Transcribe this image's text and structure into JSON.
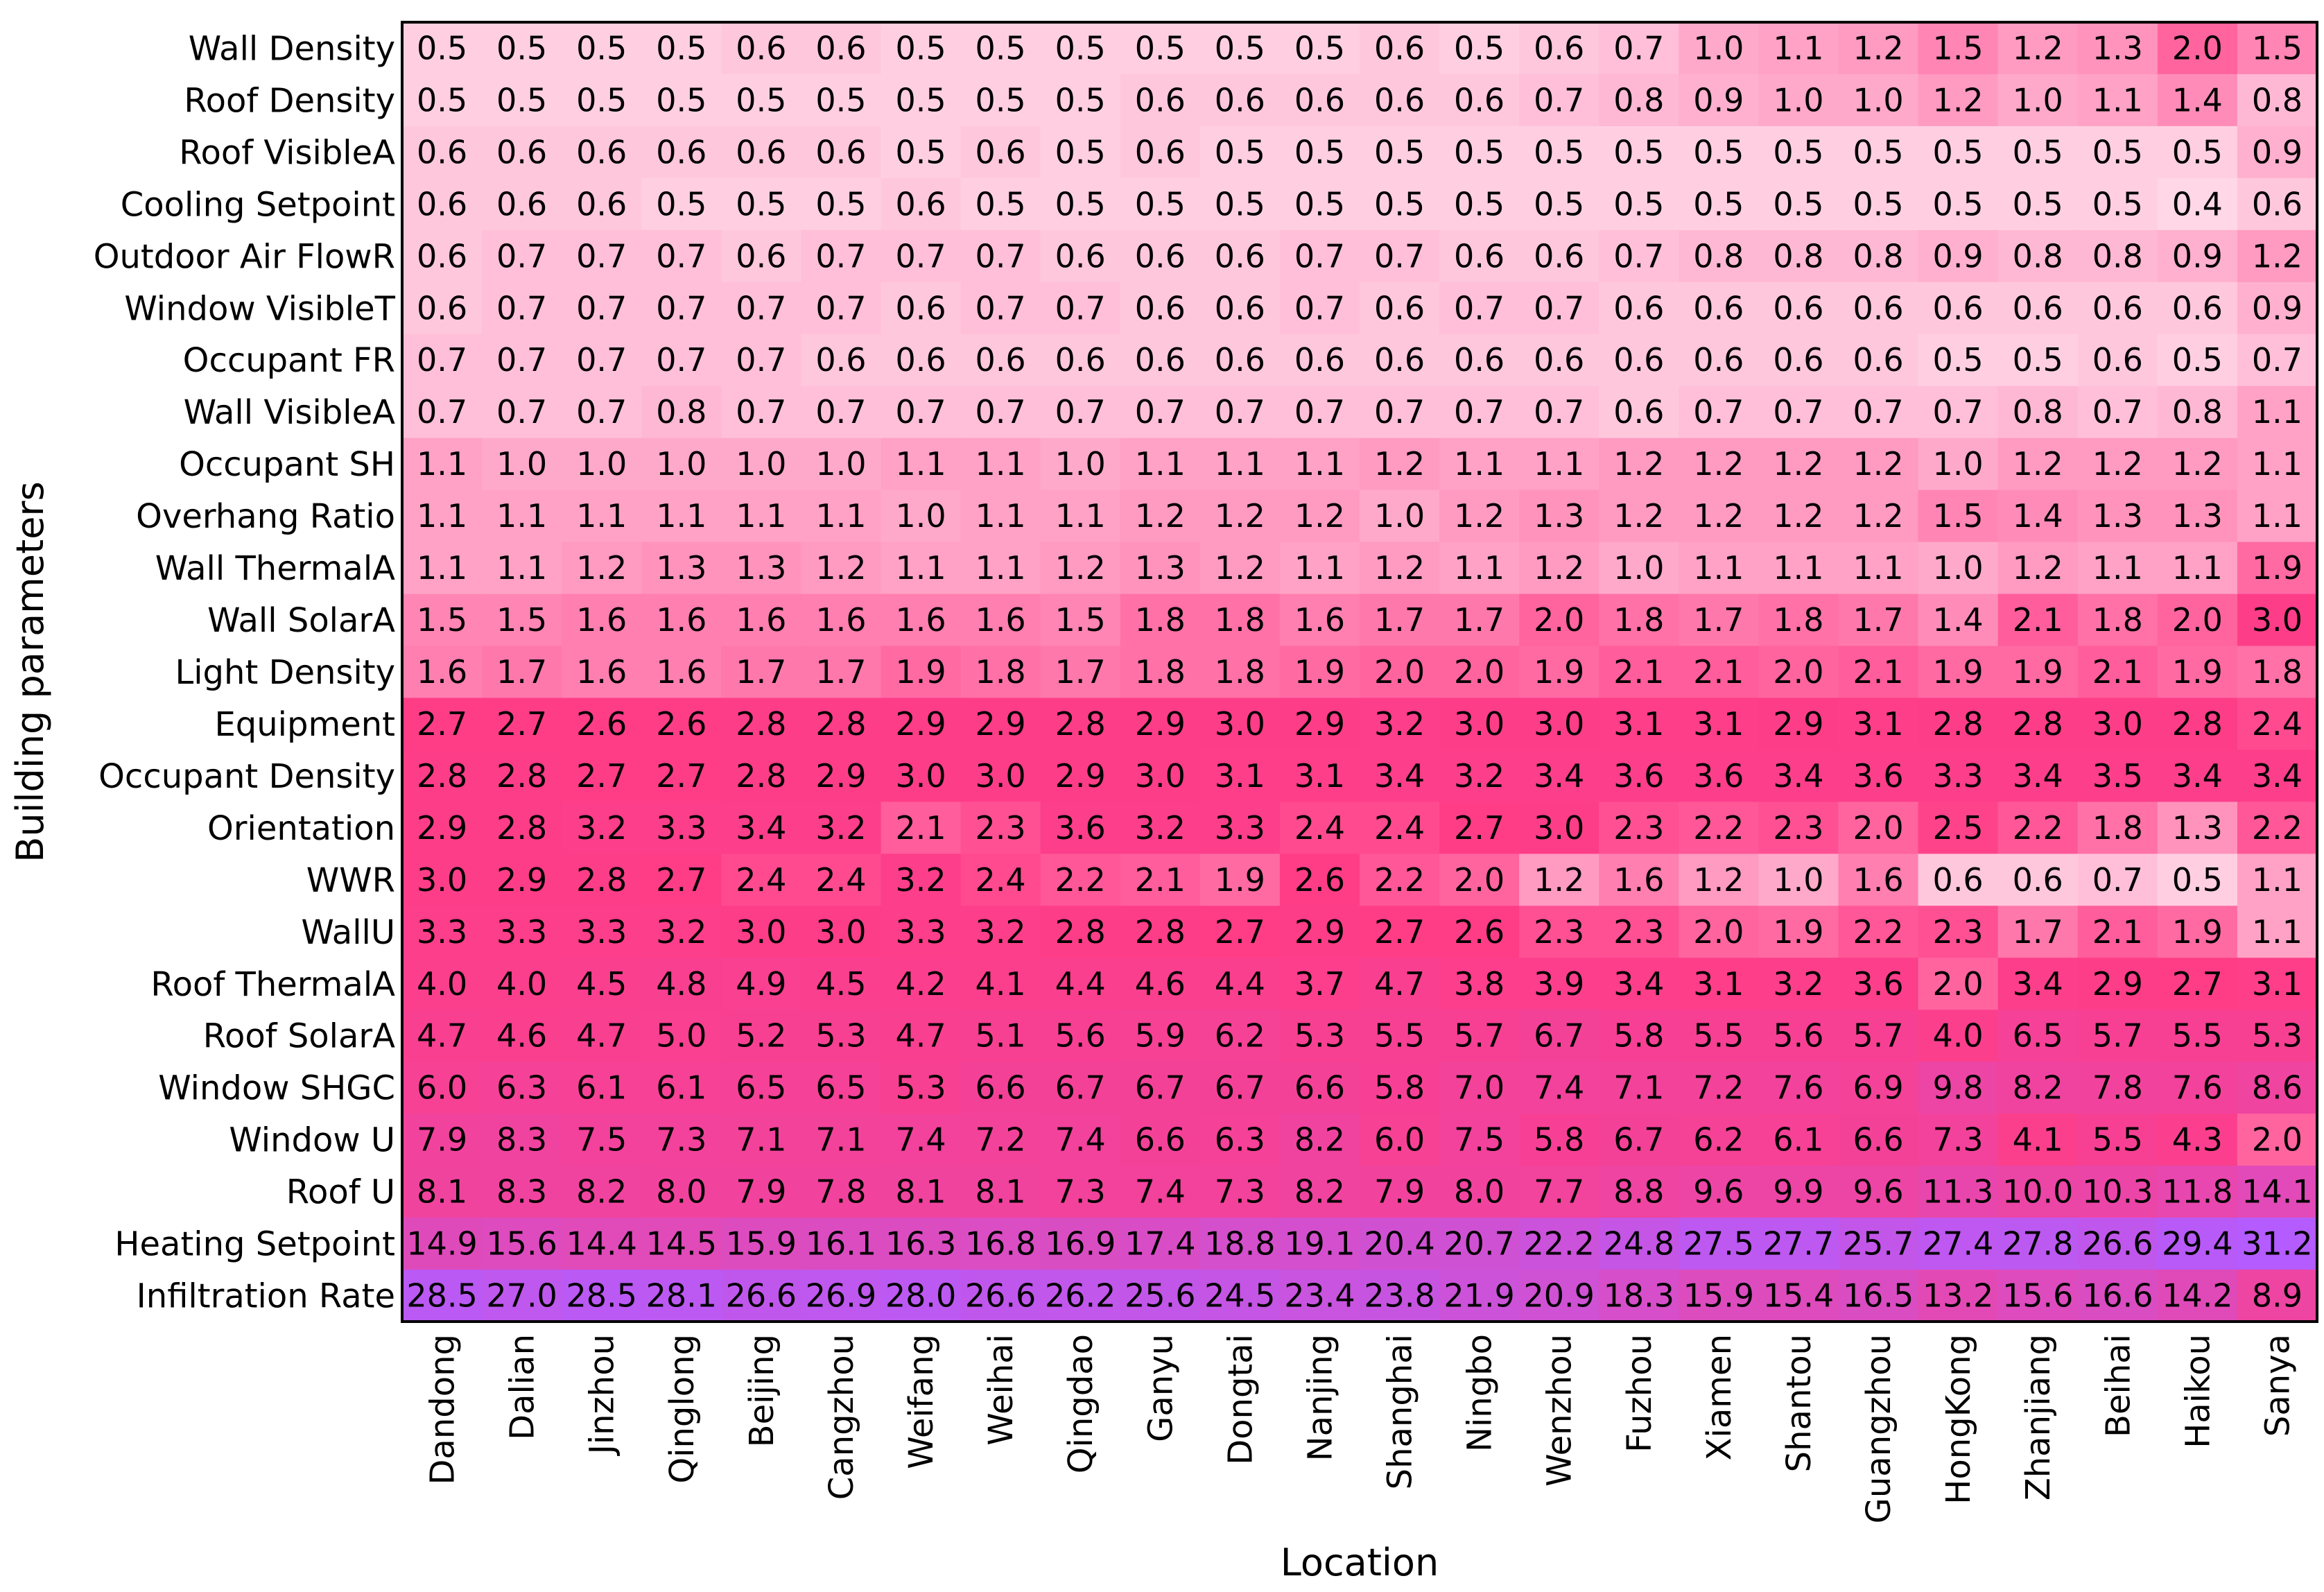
{
  "chart_data": {
    "type": "heatmap",
    "xlabel": "Location",
    "ylabel": "Building parameters",
    "columns": [
      "Dandong",
      "Dalian",
      "Jinzhou",
      "Qinglong",
      "Beijing",
      "Cangzhou",
      "Weifang",
      "Weihai",
      "Qingdao",
      "Ganyu",
      "Dongtai",
      "Nanjing",
      "Shanghai",
      "Ningbo",
      "Wenzhou",
      "Fuzhou",
      "Xiamen",
      "Shantou",
      "Guangzhou",
      "HongKong",
      "Zhanjiang",
      "Beihai",
      "Haikou",
      "Sanya"
    ],
    "rows": [
      "Wall Density",
      "Roof Density",
      "Roof VisibleA",
      "Cooling Setpoint",
      "Outdoor Air FlowR",
      "Window VisibleT",
      "Occupant FR",
      "Wall VisibleA",
      "Occupant SH",
      "Overhang Ratio",
      "Wall ThermalA",
      "Wall SolarA",
      "Light Density",
      "Equipment",
      "Occupant Density",
      "Orientation",
      "WWR",
      "WallU",
      "Roof ThermalA",
      "Roof SolarA",
      "Window SHGC",
      "Window U",
      "Roof U",
      "Heating Setpoint",
      "Infiltration Rate"
    ],
    "values": [
      [
        "0.5",
        "0.5",
        "0.5",
        "0.5",
        "0.6",
        "0.6",
        "0.5",
        "0.5",
        "0.5",
        "0.5",
        "0.5",
        "0.5",
        "0.6",
        "0.5",
        "0.6",
        "0.7",
        "1.0",
        "1.1",
        "1.2",
        "1.5",
        "1.2",
        "1.3",
        "2.0",
        "1.5"
      ],
      [
        "0.5",
        "0.5",
        "0.5",
        "0.5",
        "0.5",
        "0.5",
        "0.5",
        "0.5",
        "0.5",
        "0.6",
        "0.6",
        "0.6",
        "0.6",
        "0.6",
        "0.7",
        "0.8",
        "0.9",
        "1.0",
        "1.0",
        "1.2",
        "1.0",
        "1.1",
        "1.4",
        "0.8"
      ],
      [
        "0.6",
        "0.6",
        "0.6",
        "0.6",
        "0.6",
        "0.6",
        "0.5",
        "0.6",
        "0.5",
        "0.6",
        "0.5",
        "0.5",
        "0.5",
        "0.5",
        "0.5",
        "0.5",
        "0.5",
        "0.5",
        "0.5",
        "0.5",
        "0.5",
        "0.5",
        "0.5",
        "0.9"
      ],
      [
        "0.6",
        "0.6",
        "0.6",
        "0.5",
        "0.5",
        "0.5",
        "0.6",
        "0.5",
        "0.5",
        "0.5",
        "0.5",
        "0.5",
        "0.5",
        "0.5",
        "0.5",
        "0.5",
        "0.5",
        "0.5",
        "0.5",
        "0.5",
        "0.5",
        "0.5",
        "0.4",
        "0.6"
      ],
      [
        "0.6",
        "0.7",
        "0.7",
        "0.7",
        "0.6",
        "0.7",
        "0.7",
        "0.7",
        "0.6",
        "0.6",
        "0.6",
        "0.7",
        "0.7",
        "0.6",
        "0.6",
        "0.7",
        "0.8",
        "0.8",
        "0.8",
        "0.9",
        "0.8",
        "0.8",
        "0.9",
        "1.2"
      ],
      [
        "0.6",
        "0.7",
        "0.7",
        "0.7",
        "0.7",
        "0.7",
        "0.6",
        "0.7",
        "0.7",
        "0.6",
        "0.6",
        "0.7",
        "0.6",
        "0.7",
        "0.7",
        "0.6",
        "0.6",
        "0.6",
        "0.6",
        "0.6",
        "0.6",
        "0.6",
        "0.6",
        "0.9"
      ],
      [
        "0.7",
        "0.7",
        "0.7",
        "0.7",
        "0.7",
        "0.6",
        "0.6",
        "0.6",
        "0.6",
        "0.6",
        "0.6",
        "0.6",
        "0.6",
        "0.6",
        "0.6",
        "0.6",
        "0.6",
        "0.6",
        "0.6",
        "0.5",
        "0.5",
        "0.6",
        "0.5",
        "0.7"
      ],
      [
        "0.7",
        "0.7",
        "0.7",
        "0.8",
        "0.7",
        "0.7",
        "0.7",
        "0.7",
        "0.7",
        "0.7",
        "0.7",
        "0.7",
        "0.7",
        "0.7",
        "0.7",
        "0.6",
        "0.7",
        "0.7",
        "0.7",
        "0.7",
        "0.8",
        "0.7",
        "0.8",
        "1.1"
      ],
      [
        "1.1",
        "1.0",
        "1.0",
        "1.0",
        "1.0",
        "1.0",
        "1.1",
        "1.1",
        "1.0",
        "1.1",
        "1.1",
        "1.1",
        "1.2",
        "1.1",
        "1.1",
        "1.2",
        "1.2",
        "1.2",
        "1.2",
        "1.0",
        "1.2",
        "1.2",
        "1.2",
        "1.1"
      ],
      [
        "1.1",
        "1.1",
        "1.1",
        "1.1",
        "1.1",
        "1.1",
        "1.0",
        "1.1",
        "1.1",
        "1.2",
        "1.2",
        "1.2",
        "1.0",
        "1.2",
        "1.3",
        "1.2",
        "1.2",
        "1.2",
        "1.2",
        "1.5",
        "1.4",
        "1.3",
        "1.3",
        "1.1"
      ],
      [
        "1.1",
        "1.1",
        "1.2",
        "1.3",
        "1.3",
        "1.2",
        "1.1",
        "1.1",
        "1.2",
        "1.3",
        "1.2",
        "1.1",
        "1.2",
        "1.1",
        "1.2",
        "1.0",
        "1.1",
        "1.1",
        "1.1",
        "1.0",
        "1.2",
        "1.1",
        "1.1",
        "1.9"
      ],
      [
        "1.5",
        "1.5",
        "1.6",
        "1.6",
        "1.6",
        "1.6",
        "1.6",
        "1.6",
        "1.5",
        "1.8",
        "1.8",
        "1.6",
        "1.7",
        "1.7",
        "2.0",
        "1.8",
        "1.7",
        "1.8",
        "1.7",
        "1.4",
        "2.1",
        "1.8",
        "2.0",
        "3.0"
      ],
      [
        "1.6",
        "1.7",
        "1.6",
        "1.6",
        "1.7",
        "1.7",
        "1.9",
        "1.8",
        "1.7",
        "1.8",
        "1.8",
        "1.9",
        "2.0",
        "2.0",
        "1.9",
        "2.1",
        "2.1",
        "2.0",
        "2.1",
        "1.9",
        "1.9",
        "2.1",
        "1.9",
        "1.8"
      ],
      [
        "2.7",
        "2.7",
        "2.6",
        "2.6",
        "2.8",
        "2.8",
        "2.9",
        "2.9",
        "2.8",
        "2.9",
        "3.0",
        "2.9",
        "3.2",
        "3.0",
        "3.0",
        "3.1",
        "3.1",
        "2.9",
        "3.1",
        "2.8",
        "2.8",
        "3.0",
        "2.8",
        "2.4"
      ],
      [
        "2.8",
        "2.8",
        "2.7",
        "2.7",
        "2.8",
        "2.9",
        "3.0",
        "3.0",
        "2.9",
        "3.0",
        "3.1",
        "3.1",
        "3.4",
        "3.2",
        "3.4",
        "3.6",
        "3.6",
        "3.4",
        "3.6",
        "3.3",
        "3.4",
        "3.5",
        "3.4",
        "3.4"
      ],
      [
        "2.9",
        "2.8",
        "3.2",
        "3.3",
        "3.4",
        "3.2",
        "2.1",
        "2.3",
        "3.6",
        "3.2",
        "3.3",
        "2.4",
        "2.4",
        "2.7",
        "3.0",
        "2.3",
        "2.2",
        "2.3",
        "2.0",
        "2.5",
        "2.2",
        "1.8",
        "1.3",
        "2.2"
      ],
      [
        "3.0",
        "2.9",
        "2.8",
        "2.7",
        "2.4",
        "2.4",
        "3.2",
        "2.4",
        "2.2",
        "2.1",
        "1.9",
        "2.6",
        "2.2",
        "2.0",
        "1.2",
        "1.6",
        "1.2",
        "1.0",
        "1.6",
        "0.6",
        "0.6",
        "0.7",
        "0.5",
        "1.1"
      ],
      [
        "3.3",
        "3.3",
        "3.3",
        "3.2",
        "3.0",
        "3.0",
        "3.3",
        "3.2",
        "2.8",
        "2.8",
        "2.7",
        "2.9",
        "2.7",
        "2.6",
        "2.3",
        "2.3",
        "2.0",
        "1.9",
        "2.2",
        "2.3",
        "1.7",
        "2.1",
        "1.9",
        "1.1"
      ],
      [
        "4.0",
        "4.0",
        "4.5",
        "4.8",
        "4.9",
        "4.5",
        "4.2",
        "4.1",
        "4.4",
        "4.6",
        "4.4",
        "3.7",
        "4.7",
        "3.8",
        "3.9",
        "3.4",
        "3.1",
        "3.2",
        "3.6",
        "2.0",
        "3.4",
        "2.9",
        "2.7",
        "3.1"
      ],
      [
        "4.7",
        "4.6",
        "4.7",
        "5.0",
        "5.2",
        "5.3",
        "4.7",
        "5.1",
        "5.6",
        "5.9",
        "6.2",
        "5.3",
        "5.5",
        "5.7",
        "6.7",
        "5.8",
        "5.5",
        "5.6",
        "5.7",
        "4.0",
        "6.5",
        "5.7",
        "5.5",
        "5.3"
      ],
      [
        "6.0",
        "6.3",
        "6.1",
        "6.1",
        "6.5",
        "6.5",
        "5.3",
        "6.6",
        "6.7",
        "6.7",
        "6.7",
        "6.6",
        "5.8",
        "7.0",
        "7.4",
        "7.1",
        "7.2",
        "7.6",
        "6.9",
        "9.8",
        "8.2",
        "7.8",
        "7.6",
        "8.6"
      ],
      [
        "7.9",
        "8.3",
        "7.5",
        "7.3",
        "7.1",
        "7.1",
        "7.4",
        "7.2",
        "7.4",
        "6.6",
        "6.3",
        "8.2",
        "6.0",
        "7.5",
        "5.8",
        "6.7",
        "6.2",
        "6.1",
        "6.6",
        "7.3",
        "4.1",
        "5.5",
        "4.3",
        "2.0"
      ],
      [
        "8.1",
        "8.3",
        "8.2",
        "8.0",
        "7.9",
        "7.8",
        "8.1",
        "8.1",
        "7.3",
        "7.4",
        "7.3",
        "8.2",
        "7.9",
        "8.0",
        "7.7",
        "8.8",
        "9.6",
        "9.9",
        "9.6",
        "11.3",
        "10.0",
        "10.3",
        "11.8",
        "14.1"
      ],
      [
        "14.9",
        "15.6",
        "14.4",
        "14.5",
        "15.9",
        "16.1",
        "16.3",
        "16.8",
        "16.9",
        "17.4",
        "18.8",
        "19.1",
        "20.4",
        "20.7",
        "22.2",
        "24.8",
        "27.5",
        "27.7",
        "25.7",
        "27.4",
        "27.8",
        "26.6",
        "29.4",
        "31.2"
      ],
      [
        "28.5",
        "27.0",
        "28.5",
        "28.1",
        "26.6",
        "26.9",
        "28.0",
        "26.6",
        "26.2",
        "25.6",
        "24.5",
        "23.4",
        "23.8",
        "21.9",
        "20.9",
        "18.3",
        "15.9",
        "15.4",
        "16.5",
        "13.2",
        "15.6",
        "16.6",
        "14.2",
        "8.9"
      ]
    ],
    "colormap": [
      "#ffffff",
      "#ff3d87",
      "#b45cff"
    ],
    "colormap_stops": [
      0,
      2.6,
      31
    ],
    "grid": false,
    "legend": "none"
  }
}
